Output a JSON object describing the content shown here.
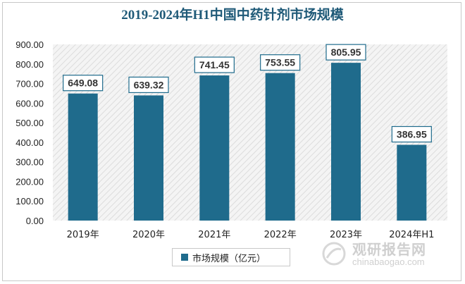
{
  "chart_data": {
    "type": "bar",
    "title": "2019-2024年H1中国中药针剂市场规模",
    "categories": [
      "2019年",
      "2020年",
      "2021年",
      "2022年",
      "2023年",
      "2024年H1"
    ],
    "series": [
      {
        "name": "市场规模（亿元）",
        "values": [
          649.08,
          639.32,
          741.45,
          753.55,
          805.95,
          386.95
        ]
      }
    ],
    "data_labels": [
      "649.08",
      "639.32",
      "741.45",
      "753.55",
      "805.95",
      "386.95"
    ],
    "y_ticks": [
      "0.00",
      "100.00",
      "200.00",
      "300.00",
      "400.00",
      "500.00",
      "600.00",
      "700.00",
      "800.00",
      "900.00"
    ],
    "ylim": [
      0,
      900
    ],
    "grid": false,
    "legend_position": "bottom",
    "bar_color": "#1f6b8c"
  },
  "legend": {
    "label": "市场规模（亿元）"
  },
  "watermark": {
    "cn": "观研报告网",
    "en": "chinabaogao.com"
  }
}
